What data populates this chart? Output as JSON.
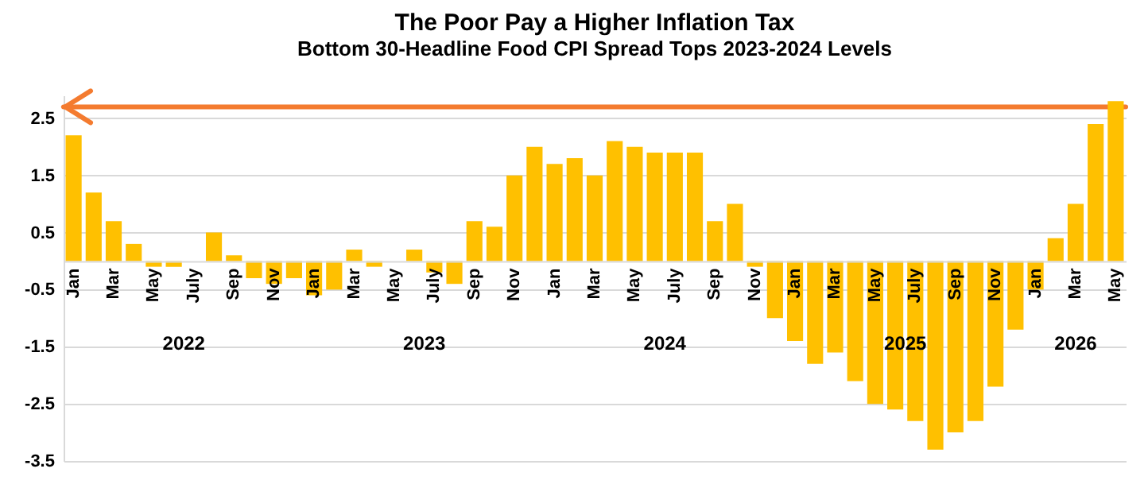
{
  "chart_data": {
    "type": "bar",
    "title": "The Poor Pay a Higher Inflation Tax",
    "subtitle": "Bottom 30-Headline Food CPI Spread Tops 2023-2024 Levels",
    "categories": [
      "Jan",
      null,
      "Mar",
      null,
      "May",
      null,
      "July",
      null,
      "Sep",
      null,
      "Nov",
      null,
      "Jan",
      null,
      "Mar",
      null,
      "May",
      null,
      "July",
      null,
      "Sep",
      null,
      "Nov",
      null,
      "Jan",
      null,
      "Mar",
      null,
      "May",
      null,
      "July",
      null,
      "Sep",
      null,
      "Nov",
      null,
      "Jan",
      null,
      "Mar",
      null,
      "May",
      null,
      "July",
      null,
      "Sep",
      null,
      "Nov",
      null,
      "Jan",
      null,
      "Mar",
      null,
      "May"
    ],
    "values": [
      2.2,
      1.2,
      0.7,
      0.3,
      -0.1,
      -0.1,
      0,
      0.5,
      0.1,
      -0.3,
      -0.4,
      -0.3,
      -0.6,
      -0.5,
      0.2,
      -0.1,
      0,
      0.2,
      -0.2,
      -0.4,
      0.7,
      0.6,
      1.5,
      2.0,
      1.7,
      1.8,
      1.5,
      2.1,
      2.0,
      1.9,
      1.9,
      1.9,
      0.7,
      1.0,
      -0.1,
      -1.0,
      -1.4,
      -1.8,
      -1.6,
      -2.1,
      -2.5,
      -2.6,
      -2.8,
      -3.3,
      -3.0,
      -2.8,
      -2.2,
      -1.2,
      -0.5,
      0.4,
      1.0,
      2.4,
      2.8
    ],
    "color": "#ffc000",
    "ylim": [
      -3.5,
      2.9
    ],
    "yticks": [
      -3.5,
      -2.5,
      -1.5,
      -0.5,
      0.5,
      1.5,
      2.5
    ],
    "grid": "y",
    "annotations": [
      "2022",
      "2023",
      "2024",
      "2025",
      "2026"
    ],
    "ref_lines": [
      {
        "axis": "y",
        "value": 2.7,
        "color": "#f47b2f"
      }
    ]
  }
}
